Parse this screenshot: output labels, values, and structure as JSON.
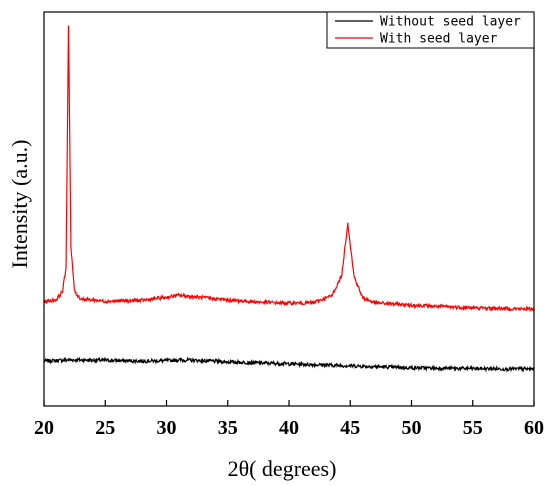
{
  "chart_data": {
    "type": "line",
    "xlabel": "2θ( degrees)",
    "ylabel": "Intensity (a.u.)",
    "xlim": [
      20,
      60
    ],
    "ylim": [
      0,
      100
    ],
    "x_ticks": [
      20,
      25,
      30,
      35,
      40,
      45,
      50,
      55,
      60
    ],
    "y_ticks_shown": false,
    "grid": false,
    "legend_position": "top-right",
    "series": [
      {
        "name": "Without seed layer",
        "color": "#000000",
        "x": [
          20,
          22,
          25,
          28,
          30,
          31,
          33,
          35,
          38,
          40,
          42,
          45,
          48,
          50,
          52,
          55,
          58,
          60
        ],
        "y": [
          11.4,
          11.7,
          11.6,
          11.4,
          11.5,
          11.7,
          11.5,
          11.2,
          10.9,
          10.7,
          10.5,
          10.2,
          9.9,
          9.7,
          9.6,
          9.5,
          9.4,
          9.4
        ]
      },
      {
        "name": "With seed layer",
        "color": "#ff0000",
        "x": [
          20,
          21,
          21.5,
          21.8,
          22.0,
          22.2,
          22.5,
          23,
          25,
          28,
          30,
          31,
          33,
          35,
          38,
          40,
          42,
          43.5,
          44.3,
          44.8,
          45.3,
          46,
          47,
          50,
          55,
          60
        ],
        "y": [
          26.5,
          27.0,
          29.0,
          35.0,
          97.0,
          40.0,
          29.0,
          27.2,
          26.6,
          26.8,
          27.6,
          28.1,
          27.5,
          26.9,
          26.3,
          26.1,
          26.2,
          28.0,
          33.0,
          46.5,
          33.0,
          27.5,
          26.2,
          25.6,
          24.9,
          24.6
        ]
      }
    ]
  }
}
